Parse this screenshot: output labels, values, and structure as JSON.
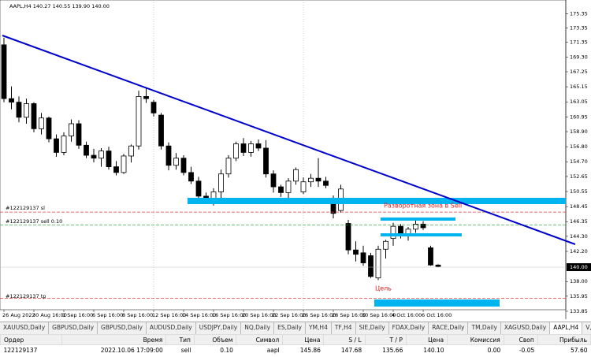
{
  "chart_data": {
    "type": "candlestick",
    "title": "AAPL,H4 140.27 140.55 139.90 140.00",
    "categories": [
      "26 Aug 2022",
      null,
      null,
      null,
      "30 Aug 16:00",
      null,
      null,
      null,
      "1 Sep 16:00",
      null,
      null,
      null,
      "6 Sep 16:00",
      null,
      null,
      null,
      "8 Sep 16:00",
      null,
      null,
      null,
      "12 Sep 16:00",
      null,
      null,
      null,
      "14 Sep 16:00",
      null,
      null,
      null,
      "16 Sep 16:00",
      null,
      null,
      null,
      "20 Sep 16:00",
      null,
      null,
      null,
      "22 Sep 16:00",
      null,
      null,
      null,
      "26 Sep 16:00",
      null,
      null,
      null,
      "28 Sep 16:00",
      null,
      null,
      null,
      "30 Sep 16:00",
      null,
      null,
      null,
      "4 Oct 16:00",
      null,
      null,
      null,
      "6 Oct 16:00",
      null,
      null
    ],
    "open": [
      171.0,
      163.5,
      163.0,
      160.9,
      162.8,
      159.3,
      160.8,
      157.9,
      156.0,
      158.3,
      160.0,
      157.0,
      155.6,
      155.2,
      156.2,
      154.0,
      153.2,
      155.5,
      156.9,
      163.8,
      163.0,
      161.2,
      156.9,
      154.2,
      155.2,
      153.2,
      152.0,
      149.9,
      149.3,
      150.5,
      153.0,
      155.2,
      157.2,
      156.0,
      157.2,
      156.6,
      153.0,
      151.2,
      150.4,
      152.0,
      150.5,
      151.9,
      152.4,
      152.0,
      149.5,
      147.9,
      146.1,
      142.4,
      142.0,
      141.6,
      138.5,
      142.5,
      144.0,
      145.7,
      144.4,
      145.3,
      146.0,
      142.7,
      140.3
    ],
    "high": [
      172.0,
      165.2,
      163.8,
      163.5,
      163.0,
      161.5,
      161.0,
      158.5,
      158.8,
      160.6,
      160.5,
      157.5,
      156.5,
      156.6,
      156.8,
      154.8,
      155.8,
      157.1,
      164.6,
      164.9,
      163.3,
      161.5,
      157.4,
      155.9,
      155.6,
      154.0,
      152.6,
      150.4,
      151.0,
      153.6,
      155.6,
      157.5,
      158.0,
      157.6,
      157.8,
      157.7,
      153.5,
      151.5,
      152.4,
      153.9,
      152.5,
      153.0,
      155.2,
      152.6,
      150.0,
      151.5,
      146.6,
      143.6,
      143.0,
      142.0,
      143.0,
      143.8,
      146.2,
      146.0,
      145.6,
      146.8,
      146.4,
      143.0,
      140.4
    ],
    "low": [
      163.0,
      162.0,
      160.2,
      160.0,
      158.8,
      158.5,
      157.4,
      155.4,
      155.6,
      157.5,
      156.5,
      155.2,
      154.6,
      154.0,
      153.6,
      152.8,
      153.0,
      154.6,
      156.4,
      162.9,
      161.0,
      156.4,
      153.5,
      153.6,
      152.8,
      151.6,
      149.4,
      148.8,
      148.6,
      149.0,
      152.5,
      154.8,
      155.5,
      155.4,
      156.2,
      152.5,
      150.4,
      149.8,
      149.6,
      151.5,
      150.2,
      151.2,
      151.2,
      151.0,
      146.8,
      147.6,
      141.8,
      140.8,
      140.2,
      138.5,
      138.2,
      141.2,
      143.0,
      144.0,
      143.7,
      144.8,
      145.2,
      140.2,
      140.0
    ],
    "close": [
      163.5,
      163.0,
      160.9,
      162.8,
      159.3,
      160.8,
      157.9,
      156.0,
      158.3,
      160.0,
      157.0,
      155.6,
      155.2,
      156.2,
      154.0,
      153.2,
      155.5,
      156.9,
      163.8,
      163.5,
      161.5,
      156.9,
      154.2,
      155.2,
      153.2,
      152.0,
      149.9,
      149.5,
      150.5,
      153.0,
      155.2,
      157.2,
      156.0,
      157.2,
      156.6,
      153.0,
      151.2,
      150.4,
      152.0,
      153.6,
      151.9,
      152.4,
      152.0,
      151.4,
      147.5,
      150.9,
      142.4,
      141.8,
      140.6,
      138.7,
      142.5,
      143.6,
      145.7,
      144.4,
      145.3,
      146.0,
      145.5,
      140.3,
      140.1
    ],
    "ylim": [
      132.75,
      177.25
    ],
    "yticks": [
      175.35,
      173.35,
      171.35,
      {
        "value": 169.3,
        "label": "169.30"
      },
      167.25,
      165.15,
      163.05,
      160.95,
      {
        "value": 158.9,
        "label": "158.90"
      },
      {
        "value": 156.8,
        "label": "156.80"
      },
      {
        "value": 154.7,
        "label": "154.70"
      },
      152.65,
      150.55,
      148.45,
      146.35,
      {
        "value": 144.3,
        "label": "144.30"
      },
      {
        "value": 142.2,
        "label": "142.20"
      },
      {
        "value": 138,
        "label": "138.00"
      },
      135.95,
      133.85
    ],
    "bid": {
      "value": 140,
      "label": "140.00"
    },
    "annotations": [
      "#122129137 sl",
      "#122129137 sell 0.10",
      "#122129137 tp",
      "Разворотная зона в Sell",
      "Цель"
    ]
  },
  "tabs": [
    "XAUUSD,Daily",
    "GBPUSD,Daily",
    "GBPUSD,Daily",
    "AUDUSD,Daily",
    "USDJPY,Daily",
    "NQ,Daily",
    "ES,Daily",
    "YM,H4",
    "TF,H4",
    "SIE,Daily",
    "FDAX,Daily",
    "RACE,Daily",
    "TM,Daily",
    "XAGUSD,Daily",
    "AAPL,H4",
    "V,M"
  ],
  "table": {
    "header": [
      "Ордер",
      "Время",
      "Тип",
      "Объем",
      "Символ",
      "Цена",
      "S / L",
      "T / P",
      "Цена",
      "Комиссия",
      "Своп",
      "Прибыль"
    ],
    "rows": [
      [
        "122129137",
        "2022.10.06 17:09:00",
        "sell",
        "0.10",
        "aapl",
        "145.86",
        "147.68",
        "135.66",
        "140.10",
        "0.00",
        "-0.05",
        "57.60"
      ]
    ]
  }
}
